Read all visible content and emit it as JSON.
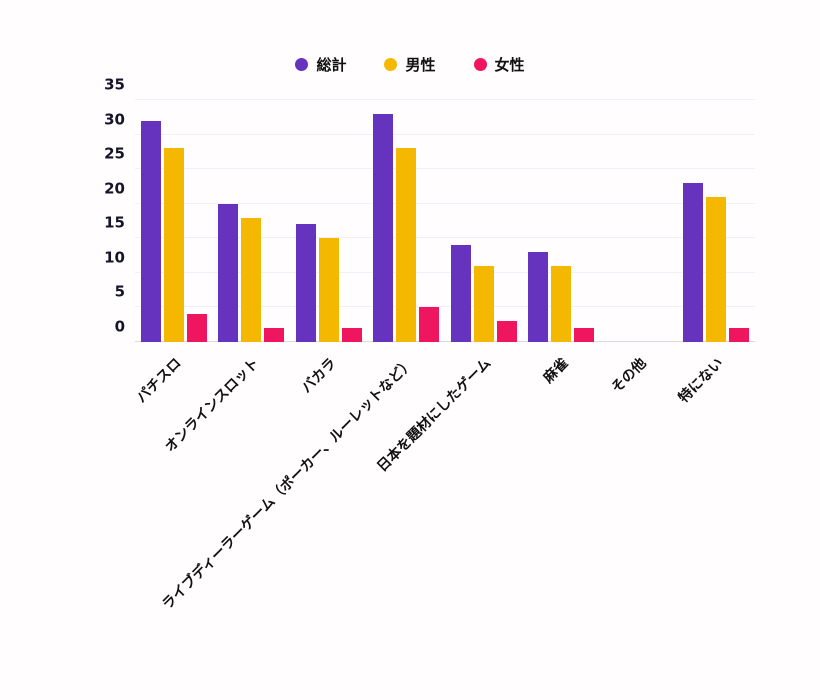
{
  "page": {
    "background": "#fffdfd"
  },
  "legend": {
    "items": [
      {
        "label": "総計",
        "color": "#6633bf"
      },
      {
        "label": "男性",
        "color": "#f5b800"
      },
      {
        "label": "女性",
        "color": "#f0155f"
      }
    ]
  },
  "chart_data": {
    "type": "bar",
    "title": "",
    "xlabel": "",
    "ylabel": "",
    "categories": [
      "パチスロ",
      "オンラインスロット",
      "バカラ",
      "ライブディーラーゲーム（ポーカー、ルーレットなど）",
      "日本を題材にしたゲーム",
      "麻雀",
      "その他",
      "特にない"
    ],
    "series": [
      {
        "name": "総計",
        "color": "#6633bf",
        "values": [
          32,
          20,
          17,
          33,
          14,
          13,
          0,
          23
        ]
      },
      {
        "name": "男性",
        "color": "#f5b800",
        "values": [
          28,
          18,
          15,
          28,
          11,
          11,
          0,
          21
        ]
      },
      {
        "name": "女性",
        "color": "#f0155f",
        "values": [
          4,
          2,
          2,
          5,
          3,
          2,
          0,
          2
        ]
      }
    ],
    "ylim": [
      0,
      35
    ],
    "yticks": [
      0,
      5,
      10,
      15,
      20,
      25,
      30,
      35
    ],
    "grid": true,
    "legend_position": "top"
  }
}
